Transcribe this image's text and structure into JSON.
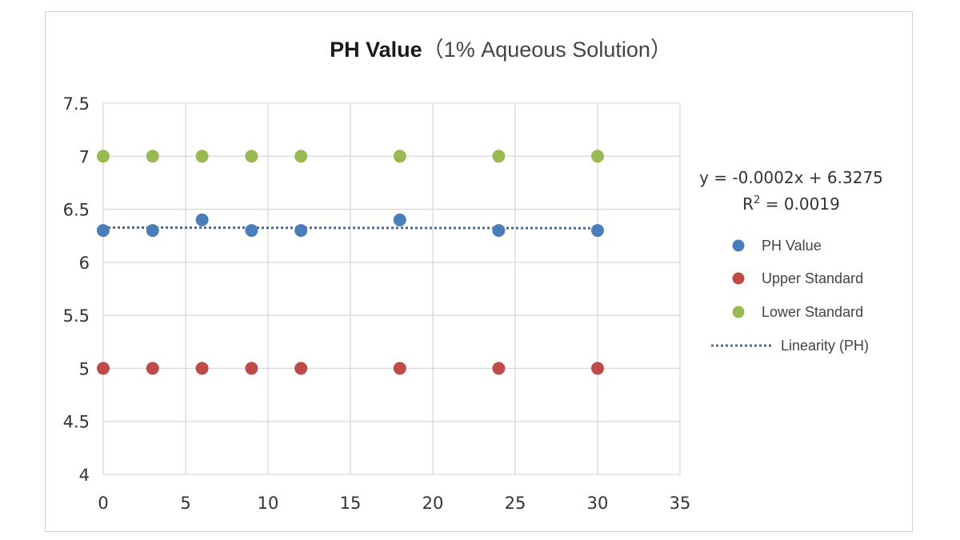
{
  "chart_data": {
    "type": "scatter",
    "title_main": "PH Value",
    "title_sub": "（1% Aqueous Solution）",
    "xlim": [
      0,
      35
    ],
    "ylim": [
      4,
      7.5
    ],
    "x_ticks": [
      "0",
      "5",
      "10",
      "15",
      "20",
      "25",
      "30",
      "35"
    ],
    "y_ticks": [
      "4",
      "4.5",
      "5",
      "5.5",
      "6",
      "6.5",
      "7",
      "7.5"
    ],
    "x_tick_values": [
      0,
      5,
      10,
      15,
      20,
      25,
      30,
      35
    ],
    "y_tick_values": [
      4,
      4.5,
      5,
      5.5,
      6,
      6.5,
      7,
      7.5
    ],
    "grid": true,
    "legend_position": "right",
    "series": [
      {
        "name": "PH Value",
        "color": "#4a7ebb",
        "x": [
          0,
          3,
          6,
          9,
          12,
          18,
          24,
          30
        ],
        "y": [
          6.3,
          6.3,
          6.4,
          6.3,
          6.3,
          6.4,
          6.3,
          6.3
        ]
      },
      {
        "name": "Upper Standard",
        "color": "#be4b48",
        "x": [
          0,
          3,
          6,
          9,
          12,
          18,
          24,
          30
        ],
        "y": [
          5,
          5,
          5,
          5,
          5,
          5,
          5,
          5
        ]
      },
      {
        "name": "Lower Standard",
        "color": "#98b954",
        "x": [
          0,
          3,
          6,
          9,
          12,
          18,
          24,
          30
        ],
        "y": [
          7,
          7,
          7,
          7,
          7,
          7,
          7,
          7
        ]
      }
    ],
    "trendline": {
      "name": "Linearity (PH)",
      "color": "#3b6ea5",
      "slope": -0.0002,
      "intercept": 6.3275,
      "x_range": [
        0,
        30
      ],
      "equation": "y = -0.0002x + 6.3275",
      "r2_label": "R",
      "r2_sup": "2",
      "r2_value": " = 0.0019"
    }
  }
}
